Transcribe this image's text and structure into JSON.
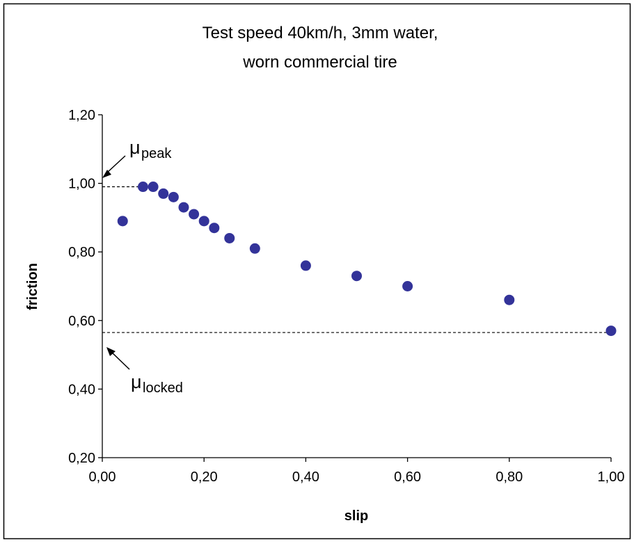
{
  "chart_data": {
    "type": "scatter",
    "title": [
      "Test speed 40km/h, 3mm water,",
      "worn commercial tire"
    ],
    "xlabel": "slip",
    "ylabel": "friction",
    "xlim": [
      0,
      1
    ],
    "ylim": [
      0.2,
      1.2
    ],
    "xticks": [
      0.0,
      0.2,
      0.4,
      0.6,
      0.8,
      1.0
    ],
    "yticks": [
      0.2,
      0.4,
      0.6,
      0.8,
      1.0,
      1.2
    ],
    "xtick_labels": [
      "0,00",
      "0,20",
      "0,40",
      "0,60",
      "0,80",
      "1,00"
    ],
    "ytick_labels": [
      "0,20",
      "0,40",
      "0,60",
      "0,80",
      "1,00",
      "1,20"
    ],
    "grid": false,
    "marker_color": "#333399",
    "points": [
      {
        "x": 0.04,
        "y": 0.89
      },
      {
        "x": 0.08,
        "y": 0.99
      },
      {
        "x": 0.1,
        "y": 0.99
      },
      {
        "x": 0.12,
        "y": 0.97
      },
      {
        "x": 0.14,
        "y": 0.96
      },
      {
        "x": 0.16,
        "y": 0.93
      },
      {
        "x": 0.18,
        "y": 0.91
      },
      {
        "x": 0.2,
        "y": 0.89
      },
      {
        "x": 0.22,
        "y": 0.87
      },
      {
        "x": 0.25,
        "y": 0.84
      },
      {
        "x": 0.3,
        "y": 0.81
      },
      {
        "x": 0.4,
        "y": 0.76
      },
      {
        "x": 0.5,
        "y": 0.73
      },
      {
        "x": 0.6,
        "y": 0.7
      },
      {
        "x": 0.8,
        "y": 0.66
      },
      {
        "x": 1.0,
        "y": 0.57
      }
    ],
    "reference_lines": [
      {
        "name": "peak",
        "y": 0.99,
        "x_from": 0.0,
        "x_to": 0.08
      },
      {
        "name": "locked",
        "y": 0.565,
        "x_from": 0.0,
        "x_to": 1.0
      }
    ],
    "annotations": [
      {
        "name": "peak",
        "symbol": "μ",
        "subscript": "peak"
      },
      {
        "name": "locked",
        "symbol": "μ",
        "subscript": "locked"
      }
    ]
  }
}
